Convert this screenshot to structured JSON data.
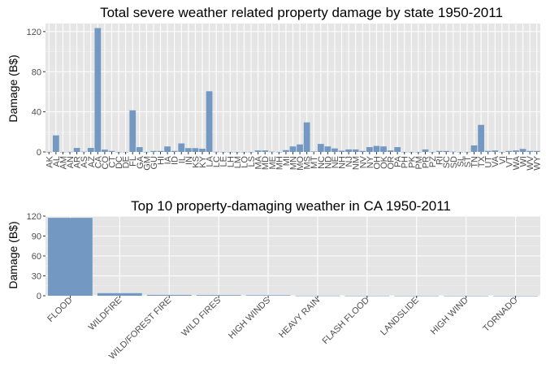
{
  "chart_data": [
    {
      "type": "bar",
      "title": "Total severe weather related property damage by state 1950-2011",
      "xlabel": "",
      "ylabel": "Damage (B$)",
      "ylim": [
        0,
        128
      ],
      "yticks": [
        0,
        40,
        80,
        120
      ],
      "grid": true,
      "bar_color": "#6d93c0",
      "background": "#e5e5e5",
      "categories": [
        "AK",
        "AL",
        "AM",
        "AN",
        "AR",
        "AS",
        "AZ",
        "CA",
        "CO",
        "CT",
        "DC",
        "DE",
        "FL",
        "GA",
        "GM",
        "GU",
        "HI",
        "IA",
        "ID",
        "IL",
        "IN",
        "KS",
        "KY",
        "LA",
        "LC",
        "LE",
        "LH",
        "LM",
        "LO",
        "LS",
        "MA",
        "MD",
        "ME",
        "MH",
        "MI",
        "MN",
        "MO",
        "MS",
        "MT",
        "NC",
        "ND",
        "NE",
        "NH",
        "NJ",
        "NM",
        "NV",
        "NY",
        "OH",
        "OK",
        "OR",
        "PA",
        "PH",
        "PK",
        "PM",
        "PR",
        "PZ",
        "RI",
        "SC",
        "SD",
        "SL",
        "ST",
        "TN",
        "TX",
        "UT",
        "VA",
        "VI",
        "VT",
        "WA",
        "WI",
        "WV",
        "WY"
      ],
      "values": [
        0.1,
        16.5,
        0.1,
        0.2,
        4.0,
        0.3,
        4.0,
        123.5,
        2.3,
        1.0,
        0.1,
        0.1,
        41.5,
        4.8,
        0.1,
        1.0,
        1.0,
        5.5,
        1.0,
        8.5,
        3.8,
        3.8,
        3.2,
        60.5,
        0.2,
        0.1,
        0.1,
        0.1,
        0.1,
        0.1,
        1.5,
        1.5,
        0.3,
        0.1,
        1.8,
        5.5,
        7.5,
        29.5,
        0.5,
        8.0,
        5.5,
        3.5,
        1.2,
        2.5,
        2.5,
        1.0,
        4.8,
        6.0,
        5.5,
        1.5,
        4.8,
        0.1,
        0.1,
        0.1,
        2.5,
        0.1,
        1.0,
        1.0,
        0.3,
        0.1,
        0.1,
        6.5,
        27.0,
        1.0,
        1.5,
        0.1,
        1.0,
        1.5,
        3.0,
        1.0,
        1.0
      ]
    },
    {
      "type": "bar",
      "title": "Top 10 property-damaging weather in CA 1950-2011",
      "xlabel": "",
      "ylabel": "Damage (B$)",
      "ylim": [
        0,
        120
      ],
      "yticks": [
        0,
        30,
        60,
        90,
        120
      ],
      "grid": true,
      "bar_color": "#6d93c0",
      "background": "#e5e5e5",
      "categories": [
        "FLOOD",
        "WILDFIRE",
        "WILD/FOREST FIRE",
        "WILD FIRES",
        "HIGH WINDS",
        "HEAVY RAIN",
        "FLASH FLOOD",
        "LANDSLIDE",
        "HIGH WIND",
        "TORNADO"
      ],
      "values": [
        117.4,
        3.9,
        1.3,
        1.0,
        0.8,
        0.2,
        0.15,
        0.12,
        0.1,
        0.08
      ]
    }
  ]
}
